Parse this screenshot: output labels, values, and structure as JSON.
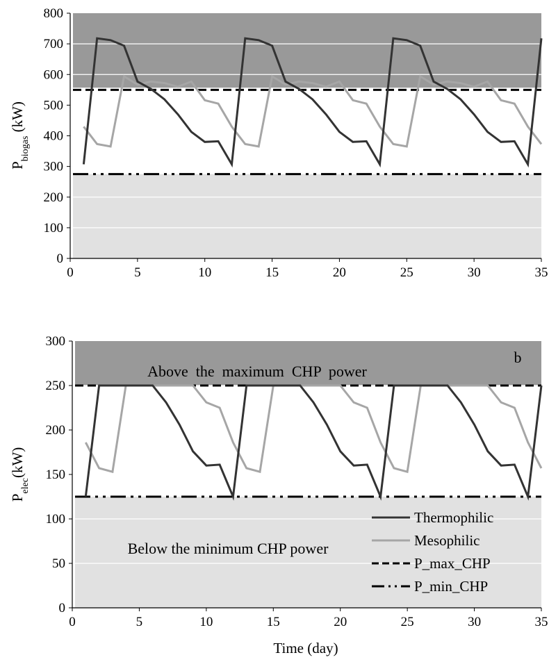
{
  "chart_data": [
    {
      "type": "line",
      "title": "",
      "xlabel": "",
      "ylabel_main": "P",
      "ylabel_sub": "biogas",
      "ylabel_unit": " (kW)",
      "xlim": [
        0,
        35
      ],
      "ylim": [
        0,
        800
      ],
      "x_ticks": [
        "0",
        "5",
        "10",
        "15",
        "20",
        "25",
        "30",
        "35"
      ],
      "y_ticks": [
        "0",
        "100",
        "200",
        "300",
        "400",
        "500",
        "600",
        "700",
        "800"
      ],
      "bands": [
        {
          "name": "above-max",
          "from": 557,
          "to": 800,
          "color": "#999999"
        },
        {
          "name": "below-min",
          "from": 0,
          "to": 275,
          "color": "#e1e1e1"
        }
      ],
      "hlines": [
        {
          "name": "P_max_CHP",
          "y": 550,
          "style": "dashed",
          "color": "#000000"
        },
        {
          "name": "P_min_CHP",
          "y": 275,
          "style": "dash-dot-dot",
          "color": "#000000"
        }
      ],
      "x": [
        1,
        2,
        3,
        4,
        5,
        6,
        7,
        8,
        9,
        10,
        11,
        12,
        13,
        14,
        15,
        16,
        17,
        18,
        19,
        20,
        21,
        22,
        23,
        24,
        25,
        26,
        27,
        28,
        29,
        30,
        31,
        32,
        33,
        34,
        35
      ],
      "series": [
        {
          "name": "Thermophilic",
          "color": "#333333",
          "values": [
            307,
            718,
            712,
            694,
            577,
            553,
            519,
            470,
            413,
            380,
            382,
            307,
            718,
            712,
            694,
            577,
            553,
            519,
            470,
            413,
            380,
            382,
            307,
            718,
            712,
            694,
            577,
            553,
            519,
            470,
            413,
            380,
            382,
            307,
            718
          ]
        },
        {
          "name": "Mesophilic",
          "color": "#a6a6a6",
          "values": [
            430,
            373,
            365,
            594,
            567,
            577,
            572,
            560,
            577,
            516,
            505,
            430,
            373,
            365,
            594,
            567,
            577,
            572,
            560,
            577,
            516,
            505,
            430,
            373,
            365,
            594,
            567,
            577,
            572,
            560,
            577,
            516,
            505,
            430,
            373
          ]
        }
      ]
    },
    {
      "type": "line",
      "title": "",
      "panel_label": "b",
      "xlabel": "Time (day)",
      "ylabel_main": "P",
      "ylabel_sub": "elec",
      "ylabel_unit": "(kW)",
      "xlim": [
        0,
        35
      ],
      "ylim": [
        0,
        300
      ],
      "x_ticks": [
        "0",
        "5",
        "10",
        "15",
        "20",
        "25",
        "30",
        "35"
      ],
      "y_ticks": [
        "0",
        "50",
        "100",
        "150",
        "200",
        "250",
        "300"
      ],
      "bands": [
        {
          "name": "above-max",
          "from": 250,
          "to": 300,
          "color": "#999999"
        },
        {
          "name": "below-min",
          "from": 0,
          "to": 125,
          "color": "#e1e1e1"
        }
      ],
      "annotations": {
        "above": "Above  the  maximum  CHP  power",
        "below": "Below the minimum CHP power"
      },
      "hlines": [
        {
          "name": "P_max_CHP",
          "y": 250,
          "style": "dashed",
          "color": "#000000"
        },
        {
          "name": "P_min_CHP",
          "y": 125,
          "style": "dash-dot-dot",
          "color": "#000000"
        }
      ],
      "x": [
        1,
        2,
        3,
        4,
        5,
        6,
        7,
        8,
        9,
        10,
        11,
        12,
        13,
        14,
        15,
        16,
        17,
        18,
        19,
        20,
        21,
        22,
        23,
        24,
        25,
        26,
        27,
        28,
        29,
        30,
        31,
        32,
        33,
        34,
        35
      ],
      "series": [
        {
          "name": "Thermophilic",
          "color": "#333333",
          "values": [
            125,
            250,
            250,
            250,
            250,
            250,
            231,
            206,
            176,
            160,
            161,
            125,
            250,
            250,
            250,
            250,
            250,
            231,
            206,
            176,
            160,
            161,
            125,
            250,
            250,
            250,
            250,
            250,
            231,
            206,
            176,
            160,
            161,
            125,
            250
          ]
        },
        {
          "name": "Mesophilic",
          "color": "#a6a6a6",
          "values": [
            186,
            157,
            153,
            250,
            250,
            250,
            250,
            250,
            250,
            231,
            225,
            186,
            157,
            153,
            250,
            250,
            250,
            250,
            250,
            250,
            231,
            225,
            186,
            157,
            153,
            250,
            250,
            250,
            250,
            250,
            250,
            231,
            225,
            186,
            157
          ]
        }
      ],
      "legend": {
        "position": "bottom-right",
        "items": [
          {
            "label": "Thermophilic",
            "style": "solid",
            "color": "#333333"
          },
          {
            "label": "Mesophilic",
            "style": "solid",
            "color": "#a6a6a6"
          },
          {
            "label": "P_max_CHP",
            "style": "dashed",
            "color": "#000000"
          },
          {
            "label": "P_min_CHP",
            "style": "dash-dot-dot",
            "color": "#000000"
          }
        ]
      }
    }
  ]
}
